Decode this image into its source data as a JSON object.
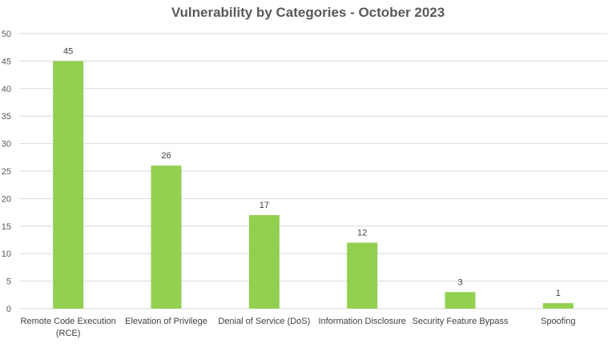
{
  "chart_data": {
    "type": "bar",
    "title": "Vulnerability by Categories - October 2023",
    "categories": [
      [
        "Remote Code Execution",
        "(RCE)"
      ],
      [
        "Elevation of Privilege"
      ],
      [
        "Denial of Service (DoS)"
      ],
      [
        "Information Disclosure"
      ],
      [
        "Security Feature Bypass"
      ],
      [
        "Spoofing"
      ]
    ],
    "values": [
      45,
      26,
      17,
      12,
      3,
      1
    ],
    "data_labels": [
      "45",
      "26",
      "17",
      "12",
      "3",
      "1"
    ],
    "ylim": [
      0,
      50
    ],
    "yticks": [
      "0",
      "5",
      "10",
      "15",
      "20",
      "25",
      "30",
      "35",
      "40",
      "45",
      "50"
    ],
    "xlabel": "",
    "ylabel": "",
    "grid": true,
    "legend": "none",
    "colors": {
      "bar": "#92D050",
      "grid": "#D9D9D9",
      "tick_text": "#595959",
      "label_text": "#404040"
    }
  }
}
